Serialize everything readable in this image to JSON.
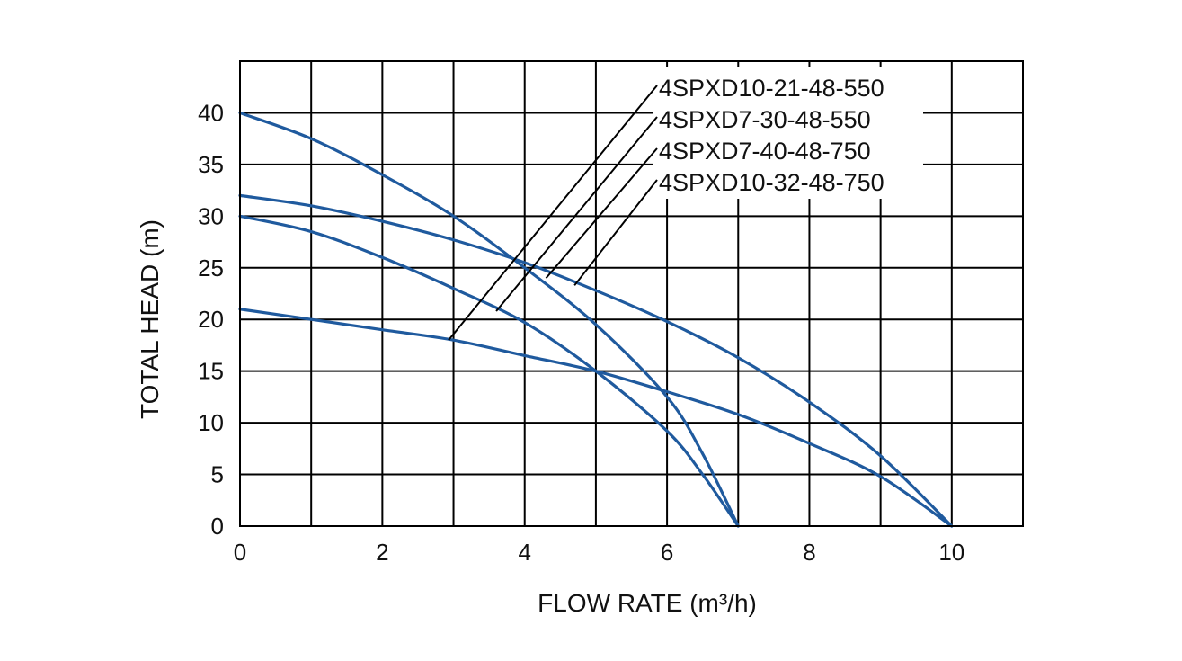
{
  "chart_data": {
    "type": "line",
    "xlabel": "FLOW  RATE (m³/h)",
    "ylabel": "TOTAL HEAD (m)",
    "xlim": [
      0,
      11
    ],
    "ylim": [
      0,
      45
    ],
    "x_ticks": [
      0,
      2,
      4,
      6,
      8,
      10
    ],
    "y_ticks": [
      0,
      5,
      10,
      15,
      20,
      25,
      30,
      35,
      40
    ],
    "x_grid_step": 1,
    "y_grid_step": 5,
    "grid": true,
    "legend_position": "top-right",
    "line_color": "#1f5a9e",
    "series": [
      {
        "name": "4SPXD10-21-48-550",
        "x": [
          0,
          1,
          2,
          3,
          4,
          5,
          6,
          7,
          8,
          9,
          10
        ],
        "y": [
          21,
          20,
          19,
          18,
          16.5,
          15,
          13,
          10.8,
          8,
          4.8,
          0
        ]
      },
      {
        "name": "4SPXD7-30-48-550",
        "x": [
          0,
          1,
          2,
          3,
          4,
          5,
          6,
          6.5,
          7
        ],
        "y": [
          30,
          28.5,
          26,
          23,
          19.7,
          15,
          9.2,
          5,
          0
        ]
      },
      {
        "name": "4SPXD7-40-48-750",
        "x": [
          0,
          1,
          2,
          3,
          4,
          5,
          6,
          6.5,
          7
        ],
        "y": [
          40,
          37.5,
          34,
          30,
          25,
          19.5,
          12.5,
          7,
          0
        ]
      },
      {
        "name": "4SPXD10-32-48-750",
        "x": [
          0,
          1,
          2,
          3,
          4,
          5,
          6,
          7,
          8,
          9,
          10
        ],
        "y": [
          32,
          31,
          29.5,
          27.7,
          25.5,
          22.8,
          19.8,
          16.3,
          12,
          6.8,
          0
        ]
      }
    ]
  }
}
